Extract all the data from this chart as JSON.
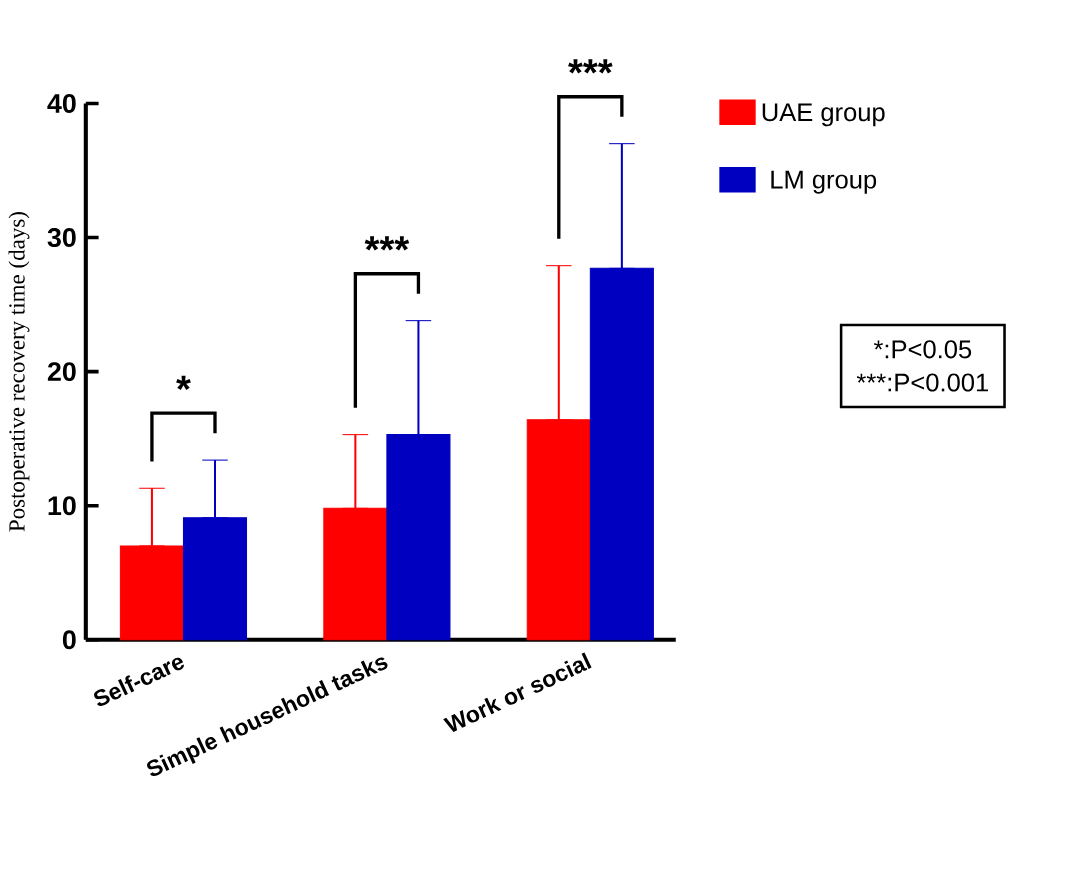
{
  "chart_data": {
    "type": "bar",
    "ylabel": "Postoperative recovery time (days)",
    "categories": [
      "Self-care",
      "Simple household tasks",
      "Work or social"
    ],
    "series": [
      {
        "name": "UAE group",
        "color": "#ff0000",
        "values": [
          7.0,
          9.8,
          16.4
        ],
        "errors": [
          [
            7.0,
            11.3
          ],
          [
            9.8,
            15.3
          ],
          [
            16.4,
            27.9
          ]
        ]
      },
      {
        "name": "LM group",
        "color": "#0000c0",
        "values": [
          9.1,
          15.3,
          27.7
        ],
        "errors": [
          [
            9.1,
            13.4
          ],
          [
            15.3,
            23.8
          ],
          [
            27.7,
            37.0
          ]
        ]
      }
    ],
    "ylim": [
      0,
      40
    ],
    "yticks": [
      0,
      10,
      20,
      30,
      40
    ],
    "grid": false,
    "legend": "top right",
    "annotations": [
      "*",
      "***",
      "***",
      "*:P<0.05",
      "***:P<0.001"
    ]
  }
}
